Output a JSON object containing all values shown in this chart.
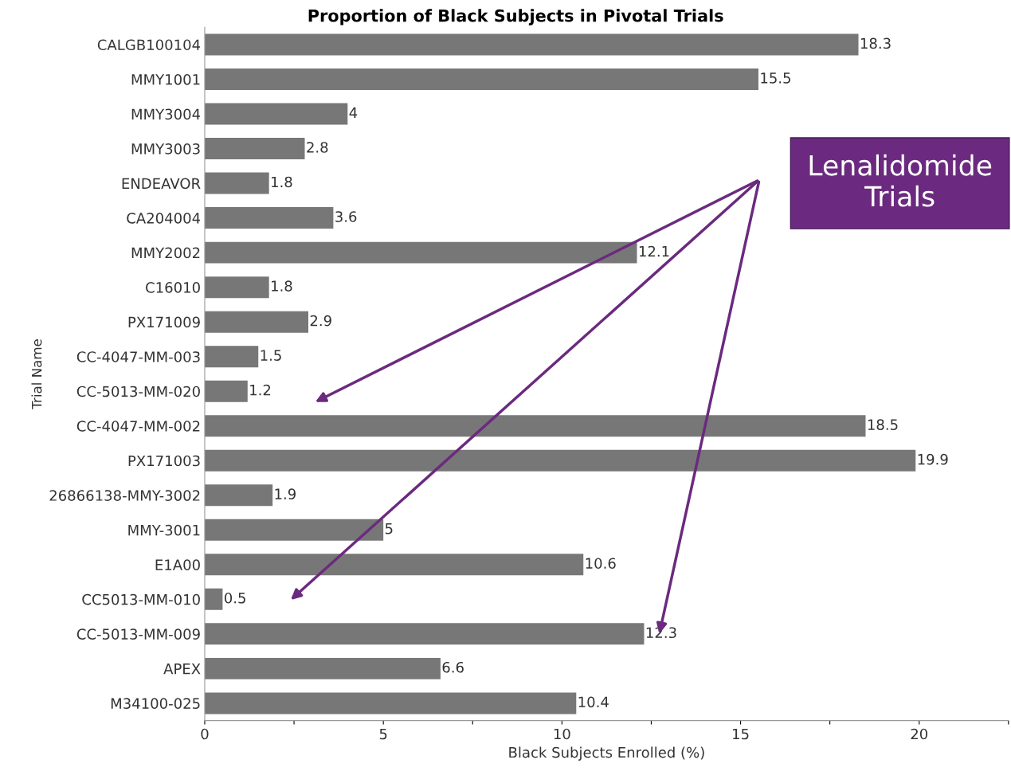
{
  "chart_data": {
    "type": "bar",
    "orientation": "horizontal",
    "title": "Proportion of Black Subjects in Pivotal Trials",
    "xlabel": "Black Subjects Enrolled (%)",
    "ylabel": "Trial Name",
    "categories": [
      "CALGB100104",
      "MMY1001",
      "MMY3004",
      "MMY3003",
      "ENDEAVOR",
      "CA204004",
      "MMY2002",
      "C16010",
      "PX171009",
      "CC-4047-MM-003",
      "CC-5013-MM-020",
      "CC-4047-MM-002",
      "PX171003",
      "26866138-MMY-3002",
      "MMY-3001",
      "E1A00",
      "CC5013-MM-010",
      "CC-5013-MM-009",
      "APEX",
      "M34100-025"
    ],
    "values": [
      18.3,
      15.5,
      4,
      2.8,
      1.8,
      3.6,
      12.1,
      1.8,
      2.9,
      1.5,
      1.2,
      18.5,
      19.9,
      1.9,
      5,
      10.6,
      0.5,
      12.3,
      6.6,
      10.4
    ],
    "color": "#777777",
    "data_labels": true,
    "xlim": [
      0,
      22.5
    ],
    "xticks": [
      0,
      {
        "value": 2.5,
        "label": null
      },
      5,
      {
        "value": 7.5,
        "label": null
      },
      10,
      {
        "value": 12.5,
        "label": null
      },
      15,
      {
        "value": 17.5,
        "label": null
      },
      20,
      {
        "value": 22.5,
        "label": null
      }
    ],
    "grid": false,
    "legend": false,
    "annotations": [
      "Lenalidomide Trials"
    ]
  }
}
